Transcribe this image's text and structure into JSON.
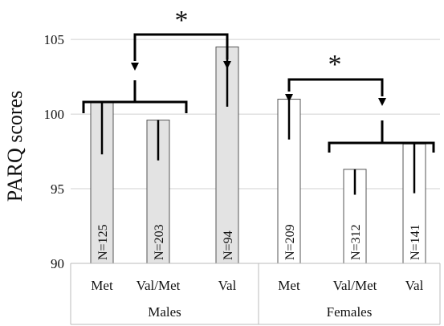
{
  "chart_data": {
    "type": "bar",
    "title": "",
    "xlabel": "",
    "ylabel": "PARQ  scores",
    "ylim": [
      90,
      107
    ],
    "yticks": [
      90,
      95,
      100,
      105
    ],
    "grid": true,
    "legend": "none",
    "groups": [
      {
        "name": "Males",
        "categories": [
          "Met",
          "Val/Met",
          "Val"
        ]
      },
      {
        "name": "Females",
        "categories": [
          "Met",
          "Val/Met",
          "Val"
        ]
      }
    ],
    "bars": [
      {
        "group": "Males",
        "category": "Met",
        "value": 100.8,
        "error_low": 97.3,
        "error_high": 100.8,
        "label": "N=125",
        "fill": "#e3e3e3"
      },
      {
        "group": "Males",
        "category": "Val/Met",
        "value": 99.6,
        "error_low": 96.9,
        "error_high": 99.6,
        "label": "N=203",
        "fill": "#e3e3e3"
      },
      {
        "group": "Males",
        "category": "Val",
        "value": 104.5,
        "error_low": 100.5,
        "error_high": 104.5,
        "label": "N=94",
        "fill": "#e3e3e3"
      },
      {
        "group": "Females",
        "category": "Met",
        "value": 101.0,
        "error_low": 98.3,
        "error_high": 101.0,
        "label": "N=209",
        "fill": "#ffffff"
      },
      {
        "group": "Females",
        "category": "Val/Met",
        "value": 96.3,
        "error_low": 94.6,
        "error_high": 96.3,
        "label": "N=312",
        "fill": "#ffffff"
      },
      {
        "group": "Females",
        "category": "Val",
        "value": 98.0,
        "error_low": 94.7,
        "error_high": 98.0,
        "label": "N=141",
        "fill": "#ffffff"
      }
    ],
    "annotations": [
      {
        "symbol": "*",
        "meaning": "significant difference",
        "from": "Males Met + Val/Met",
        "to": "Males Val"
      },
      {
        "symbol": "*",
        "meaning": "significant difference",
        "from": "Females Met",
        "to": "Females Val/Met + Val"
      }
    ]
  },
  "colors": {
    "male_bar": "#e3e3e3",
    "female_bar": "#ffffff",
    "bar_stroke": "#555555",
    "error_bar": "#000000",
    "grid": "#d0d0d0",
    "axis": "#bbbbbb"
  }
}
